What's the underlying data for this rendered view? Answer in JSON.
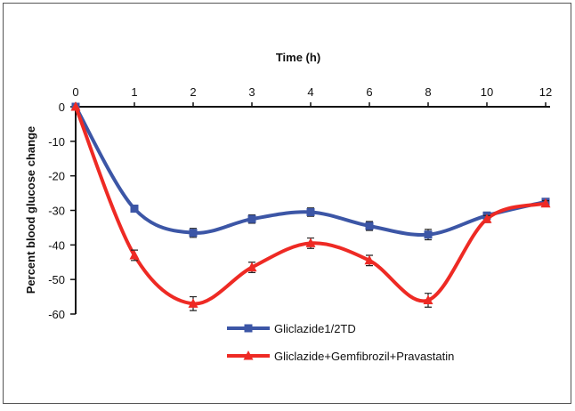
{
  "chart_data": {
    "type": "line",
    "title": "",
    "xlabel": "Time (h)",
    "ylabel": "Percent blood glucose change",
    "x_ticks": [
      "0",
      "1",
      "2",
      "3",
      "4",
      "6",
      "8",
      "10",
      "12"
    ],
    "y_ticks": [
      "0",
      "-10",
      "-20",
      "-30",
      "-40",
      "-50",
      "-60"
    ],
    "ylim": [
      -60,
      0
    ],
    "grid": false,
    "legend_position": "bottom-center",
    "series": [
      {
        "name": "Gliclazide1/2TD",
        "color": "#3c56a6",
        "marker": "square",
        "values": [
          0,
          -29.5,
          -36.5,
          -32.5,
          -30.5,
          -34.5,
          -37,
          -31.5,
          -27.5
        ],
        "error": [
          0,
          1,
          1.3,
          1.2,
          1.2,
          1.3,
          1.5,
          1,
          0.8
        ]
      },
      {
        "name": "Gliclazide+Gemfibrozil+Pravastatin",
        "color": "#ee2a24",
        "marker": "triangle",
        "values": [
          0,
          -43,
          -57,
          -46.5,
          -39.5,
          -44.5,
          -56,
          -32.5,
          -28
        ],
        "error": [
          0,
          1.5,
          2,
          1.5,
          1.5,
          1.5,
          2,
          1,
          0.8
        ]
      }
    ]
  }
}
